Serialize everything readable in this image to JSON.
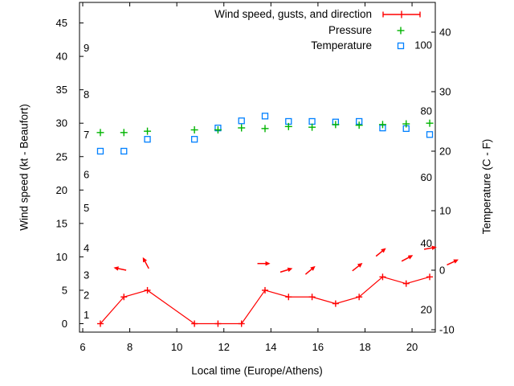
{
  "colors": {
    "wind": "#ff0000",
    "pressure": "#00b400",
    "temperature": "#0080ff",
    "axis": "#000000",
    "background": "#ffffff"
  },
  "labels": {
    "ylabel": "Wind speed (kt - Beaufort)",
    "y2label": "Temperature (C - F)",
    "xlabel": "Local time (Europe/Athens)"
  },
  "legend": {
    "wind_label": "Wind speed, gusts, and direction",
    "pressure_label": "Pressure",
    "temperature_label": "Temperature"
  },
  "chart_data": {
    "type": "line",
    "x_hours": [
      6.75,
      7.75,
      8.75,
      10.75,
      11.75,
      12.75,
      13.75,
      14.75,
      15.75,
      16.75,
      17.75,
      18.75,
      19.75,
      20.75
    ],
    "series": [
      {
        "name": "Wind speed, gusts, and direction",
        "marker": "plus-line",
        "axis": "kt",
        "values": [
          0,
          4,
          5,
          0,
          0,
          0,
          5,
          4,
          4,
          3,
          4,
          7,
          6,
          7
        ]
      },
      {
        "name": "Pressure",
        "marker": "plus",
        "axis": "kt-scale-units",
        "values": [
          28.6,
          28.6,
          28.8,
          29.0,
          29.0,
          29.3,
          29.2,
          29.5,
          29.4,
          29.8,
          29.7,
          29.8,
          29.9,
          30.0
        ]
      },
      {
        "name": "Temperature",
        "marker": "square",
        "axis": "celsius",
        "values": [
          20.0,
          20.0,
          22.0,
          22.0,
          23.9,
          25.1,
          25.9,
          25.0,
          25.0,
          24.9,
          25.0,
          23.9,
          23.8,
          22.8
        ]
      }
    ],
    "wind_direction_arrows": [
      {
        "hour": 7.58,
        "kt": 8.2,
        "angle_deg": 168
      },
      {
        "hour": 8.68,
        "kt": 9.1,
        "angle_deg": 118
      },
      {
        "hour": 13.7,
        "kt": 9.0,
        "angle_deg": 0
      },
      {
        "hour": 14.66,
        "kt": 8.0,
        "angle_deg": 17
      },
      {
        "hour": 15.68,
        "kt": 8.0,
        "angle_deg": 40
      },
      {
        "hour": 17.68,
        "kt": 8.5,
        "angle_deg": 38
      },
      {
        "hour": 18.68,
        "kt": 10.7,
        "angle_deg": 39
      },
      {
        "hour": 19.8,
        "kt": 9.8,
        "angle_deg": 28
      },
      {
        "hour": 20.78,
        "kt": 11.3,
        "angle_deg": 10
      },
      {
        "hour": 21.73,
        "kt": 9.2,
        "angle_deg": 25
      }
    ],
    "axes": {
      "x": {
        "ticks": [
          6,
          8,
          10,
          12,
          14,
          16,
          18,
          20
        ],
        "range": [
          5.86,
          21.0
        ]
      },
      "y_left_kt": {
        "ticks": [
          0,
          5,
          10,
          15,
          20,
          25,
          30,
          35,
          40,
          45
        ],
        "range": [
          -1.3,
          48.1
        ],
        "beaufort_labels": [
          {
            "label": "1",
            "kt": 1
          },
          {
            "label": "2",
            "kt": 4
          },
          {
            "label": "3",
            "kt": 7
          },
          {
            "label": "4",
            "kt": 11
          },
          {
            "label": "5",
            "kt": 17
          },
          {
            "label": "6",
            "kt": 22
          },
          {
            "label": "7",
            "kt": 28
          },
          {
            "label": "8",
            "kt": 34
          },
          {
            "label": "9",
            "kt": 41
          }
        ]
      },
      "y_right_celsius": {
        "ticks": [
          -10,
          0,
          10,
          20,
          30,
          40
        ],
        "range": [
          -10.4,
          45.0
        ],
        "fahrenheit_labels": [
          20,
          40,
          60,
          80,
          100
        ]
      }
    },
    "legend_position": "top-right-inside",
    "grid": false
  }
}
